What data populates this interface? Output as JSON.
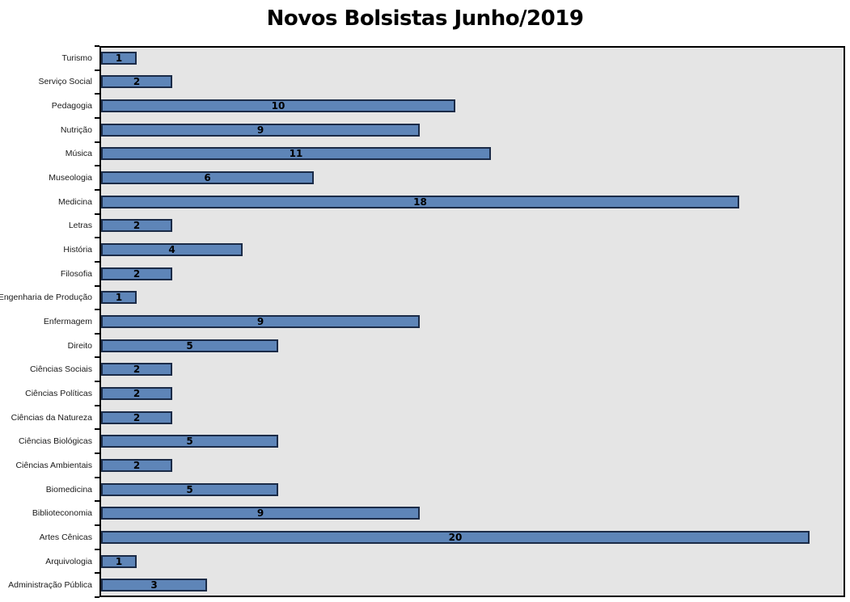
{
  "title": "Novos Bolsistas Junho/2019",
  "colors": {
    "bar_fill": "#5E85B8",
    "bar_border": "#1B2B47",
    "plot_bg": "#E5E5E5",
    "plot_border": "#000000",
    "title_color": "#000000",
    "page_bg": "#FFFFFF"
  },
  "chart_data": {
    "type": "bar",
    "orientation": "horizontal",
    "title": "Novos Bolsistas Junho/2019",
    "xlabel": "",
    "ylabel": "",
    "xlim": [
      0,
      21
    ],
    "grid": false,
    "legend": false,
    "value_labels": "centered-inside-bars",
    "categories": [
      "Turismo",
      "Serviço Social",
      "Pedagogia",
      "Nutrição",
      "Música",
      "Museologia",
      "Medicina",
      "Letras",
      "História",
      "Filosofia",
      "Engenharia de Produção",
      "Enfermagem",
      "Direito",
      "Ciências Sociais",
      "Ciências Políticas",
      "Ciências da Natureza",
      "Ciências Biológicas",
      "Ciências Ambientais",
      "Biomedicina",
      "Biblioteconomia",
      "Artes Cênicas",
      "Arquivologia",
      "Administração Pública"
    ],
    "values": [
      1,
      2,
      10,
      9,
      11,
      6,
      18,
      2,
      4,
      2,
      1,
      9,
      5,
      2,
      2,
      2,
      5,
      2,
      5,
      9,
      20,
      1,
      3
    ]
  }
}
